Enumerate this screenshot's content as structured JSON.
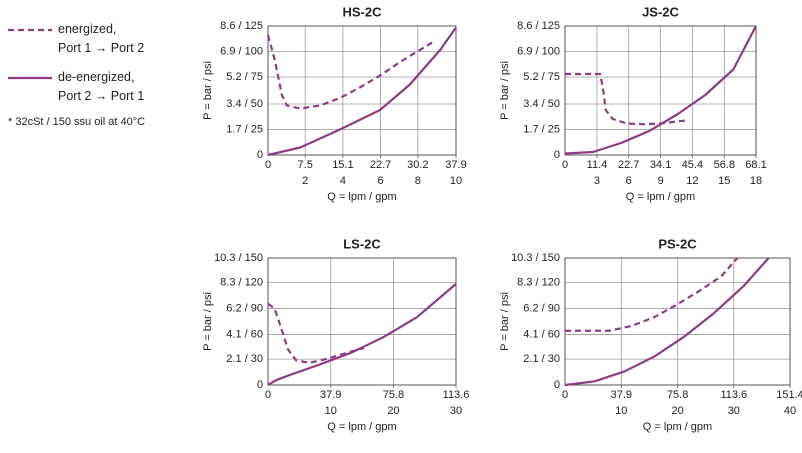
{
  "note": "* 32cSt / 150 ssu oil at 40°C",
  "chart_data": [
    {
      "type": "line",
      "title": "HS-2C",
      "xlabel": "Q = lpm / gpm",
      "ylabel": "P = bar / psi",
      "xlim": [
        0,
        37.9
      ],
      "xticks": [
        0,
        7.5,
        15.1,
        22.7,
        30.2,
        37.9
      ],
      "x2ticks": [
        {
          "value": 7.5,
          "label": "2"
        },
        {
          "value": 15.1,
          "label": "4"
        },
        {
          "value": 22.7,
          "label": "6"
        },
        {
          "value": 30.2,
          "label": "8"
        },
        {
          "value": 37.9,
          "label": "10"
        }
      ],
      "ylim": [
        0,
        8.6
      ],
      "yticks": [
        0,
        {
          "value": 1.7,
          "label": "1.7 / 25"
        },
        {
          "value": 3.4,
          "label": "3.4 / 50"
        },
        {
          "value": 5.2,
          "label": "5.2 / 75"
        },
        {
          "value": 6.9,
          "label": "6.9 / 100"
        },
        {
          "value": 8.6,
          "label": "8.6 / 125"
        }
      ],
      "grid": true,
      "series": [
        {
          "name": "energized,\nPort 1 → Port 2",
          "color": "#8e3a84",
          "dashed": true,
          "x": [
            0,
            1.4,
            2.8,
            3.8,
            6.5,
            10.5,
            14.5,
            18.5,
            22.6,
            26.6,
            30.6,
            33.1
          ],
          "values": [
            8.0,
            6.3,
            4.0,
            3.3,
            3.1,
            3.3,
            3.8,
            4.5,
            5.3,
            6.2,
            7.0,
            7.5
          ]
        },
        {
          "name": "de-energized,\nPort 2 → Port 1",
          "color": "#8e3a84",
          "dashed": false,
          "x": [
            0,
            6.5,
            14.5,
            22.6,
            28.6,
            34.7,
            37.9
          ],
          "values": [
            0,
            0.5,
            1.7,
            3.0,
            4.7,
            7.0,
            8.5
          ]
        }
      ]
    },
    {
      "type": "line",
      "title": "JS-2C",
      "xlabel": "Q = lpm / gpm",
      "ylabel": "P = bar / psi",
      "xlim": [
        0,
        68.1
      ],
      "xticks": [
        0,
        11.4,
        22.7,
        34.1,
        45.4,
        56.8,
        68.1
      ],
      "x2ticks": [
        {
          "value": 11.4,
          "label": "3"
        },
        {
          "value": 22.7,
          "label": "6"
        },
        {
          "value": 34.1,
          "label": "9"
        },
        {
          "value": 45.4,
          "label": "12"
        },
        {
          "value": 56.8,
          "label": "15"
        },
        {
          "value": 68.1,
          "label": "18"
        }
      ],
      "ylim": [
        0,
        8.6
      ],
      "yticks": [
        0,
        {
          "value": 1.7,
          "label": "1.7 / 25"
        },
        {
          "value": 3.4,
          "label": "3.4 / 50"
        },
        {
          "value": 5.2,
          "label": "5.2 / 75"
        },
        {
          "value": 6.9,
          "label": "6.9 / 100"
        },
        {
          "value": 8.6,
          "label": "8.6 / 125"
        }
      ],
      "grid": true,
      "series": [
        {
          "color": "#8e3a84",
          "dashed": true,
          "x": [
            0,
            12.5,
            13.5,
            14.5,
            17,
            22,
            28,
            34,
            43
          ],
          "values": [
            5.4,
            5.4,
            4.5,
            3.0,
            2.4,
            2.1,
            2.05,
            2.1,
            2.3
          ]
        },
        {
          "color": "#8e3a84",
          "dashed": false,
          "x": [
            0,
            10,
            20,
            30,
            40,
            50,
            60,
            68.1
          ],
          "values": [
            0.1,
            0.2,
            0.8,
            1.6,
            2.7,
            4.0,
            5.7,
            8.6
          ]
        }
      ]
    },
    {
      "type": "line",
      "title": "LS-2C",
      "xlabel": "Q = lpm / gpm",
      "ylabel": "P = bar / psi",
      "xlim": [
        0,
        113.6
      ],
      "xticks": [
        0,
        37.9,
        75.8,
        113.6
      ],
      "x2ticks": [
        {
          "value": 37.9,
          "label": "10"
        },
        {
          "value": 75.8,
          "label": "20"
        },
        {
          "value": 113.6,
          "label": "30"
        }
      ],
      "ylim": [
        0,
        10.3
      ],
      "yticks": [
        0,
        {
          "value": 2.1,
          "label": "2.1 / 30"
        },
        {
          "value": 4.1,
          "label": "4.1 / 60"
        },
        {
          "value": 6.2,
          "label": "6.2 / 90"
        },
        {
          "value": 8.3,
          "label": "8.3 / 120"
        },
        {
          "value": 10.3,
          "label": "10.3 / 150"
        }
      ],
      "grid": true,
      "series": [
        {
          "color": "#8e3a84",
          "dashed": true,
          "x": [
            0,
            4,
            8,
            12,
            17,
            25,
            35,
            50,
            58
          ],
          "values": [
            6.6,
            6.2,
            4.6,
            2.9,
            2.0,
            1.8,
            2.1,
            2.7,
            3.0
          ]
        },
        {
          "color": "#8e3a84",
          "dashed": false,
          "x": [
            0,
            5,
            15,
            30,
            50,
            70,
            90,
            113.6
          ],
          "values": [
            0,
            0.4,
            0.9,
            1.6,
            2.6,
            3.9,
            5.5,
            8.2
          ]
        }
      ]
    },
    {
      "type": "line",
      "title": "PS-2C",
      "xlabel": "Q = lpm / gpm",
      "ylabel": "P = bar / psi",
      "xlim": [
        0,
        151.4
      ],
      "xticks": [
        0,
        37.9,
        75.8,
        113.6,
        151.4
      ],
      "x2ticks": [
        {
          "value": 37.9,
          "label": "10"
        },
        {
          "value": 75.8,
          "label": "20"
        },
        {
          "value": 113.6,
          "label": "30"
        },
        {
          "value": 151.4,
          "label": "40"
        }
      ],
      "ylim": [
        0,
        10.3
      ],
      "yticks": [
        0,
        {
          "value": 2.1,
          "label": "2.1 / 30"
        },
        {
          "value": 4.1,
          "label": "4.1 / 60"
        },
        {
          "value": 6.2,
          "label": "6.2 / 90"
        },
        {
          "value": 8.3,
          "label": "8.3 / 120"
        },
        {
          "value": 10.3,
          "label": "10.3 / 150"
        }
      ],
      "grid": true,
      "series": [
        {
          "color": "#8e3a84",
          "dashed": true,
          "x": [
            0,
            30,
            45,
            60,
            75,
            90,
            105,
            116
          ],
          "values": [
            4.4,
            4.4,
            4.8,
            5.5,
            6.5,
            7.6,
            8.8,
            10.3
          ]
        },
        {
          "color": "#8e3a84",
          "dashed": false,
          "x": [
            0,
            20,
            40,
            60,
            80,
            100,
            120,
            137
          ],
          "values": [
            0,
            0.3,
            1.1,
            2.3,
            3.9,
            5.8,
            8.0,
            10.3
          ]
        }
      ]
    }
  ]
}
